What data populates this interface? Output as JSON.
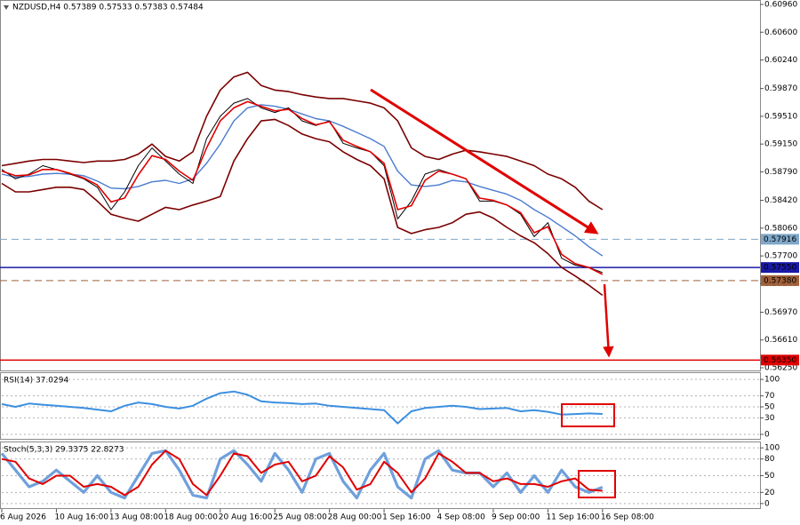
{
  "chart_data": [
    {
      "type": "line",
      "title": "NZDUSD,H4  0.57389 0.57533 0.57383 0.57484",
      "categories": [
        "6 Aug 2026",
        null,
        null,
        null,
        "10 Aug 16:00",
        null,
        null,
        null,
        "13 Aug 08:00",
        null,
        null,
        null,
        "18 Aug 00:00",
        null,
        null,
        null,
        "20 Aug 16:00",
        null,
        null,
        null,
        "25 Aug 08:00",
        null,
        null,
        null,
        "28 Aug 00:00",
        null,
        null,
        null,
        "1 Sep 16:00",
        null,
        null,
        null,
        "4 Sep 08:00",
        null,
        null,
        null,
        "9 Sep 00:00",
        null,
        null,
        null,
        "11 Sep 16:00",
        null,
        null,
        null,
        "16 Sep 08:00"
      ],
      "ylim": [
        0.56204,
        0.61006
      ],
      "yticks": [
        {
          "value": 0.6096,
          "label": "0.60960"
        },
        {
          "value": 0.606,
          "label": "0.60600"
        },
        {
          "value": 0.6024,
          "label": "0.60240"
        },
        {
          "value": 0.5987,
          "label": "0.59870"
        },
        {
          "value": 0.5951,
          "label": "0.59510"
        },
        {
          "value": 0.5915,
          "label": "0.59150"
        },
        {
          "value": 0.5879,
          "label": "0.58790"
        },
        {
          "value": 0.5842,
          "label": "0.58420"
        },
        {
          "value": 0.5806,
          "label": "0.58060"
        },
        {
          "value": 0.577,
          "label": "0.57700"
        },
        {
          "value": 0.5734,
          "label": "0.57340"
        },
        {
          "value": 0.5697,
          "label": "0.56970"
        },
        {
          "value": 0.5661,
          "label": "0.56610"
        },
        {
          "value": 0.5625,
          "label": "0.56250"
        }
      ],
      "grid": false,
      "series": [
        {
          "color": "#7b0000",
          "width": 1.6,
          "values": [
            0.5887,
            0.589,
            0.5893,
            0.5895,
            0.5895,
            0.5893,
            0.5891,
            0.5893,
            0.5893,
            0.5895,
            0.5902,
            0.5915,
            0.5899,
            0.5893,
            0.5905,
            0.5951,
            0.5985,
            0.6002,
            0.6008,
            0.5991,
            0.5985,
            0.5983,
            0.5979,
            0.5976,
            0.5974,
            0.5974,
            0.5971,
            0.5968,
            0.5962,
            0.5945,
            0.591,
            0.5899,
            0.5895,
            0.5902,
            0.5907,
            0.5905,
            0.5902,
            0.5899,
            0.5893,
            0.5887,
            0.5876,
            0.587,
            0.5859,
            0.5841,
            0.583
          ]
        },
        {
          "color": "#7b0000",
          "width": 1.6,
          "values": [
            0.5864,
            0.5853,
            0.5853,
            0.5856,
            0.5859,
            0.5859,
            0.5856,
            0.5841,
            0.5824,
            0.5819,
            0.5815,
            0.5824,
            0.5833,
            0.583,
            0.5836,
            0.5841,
            0.5847,
            0.5893,
            0.5922,
            0.5945,
            0.5947,
            0.5939,
            0.5928,
            0.5922,
            0.5918,
            0.5905,
            0.5895,
            0.5887,
            0.587,
            0.5807,
            0.5799,
            0.5804,
            0.5807,
            0.5813,
            0.5824,
            0.5827,
            0.5819,
            0.5807,
            0.5796,
            0.5787,
            0.5773,
            0.5755,
            0.5744,
            0.5732,
            0.5719
          ]
        },
        {
          "color": "#4a7cd0",
          "width": 1.4,
          "values": [
            0.5876,
            0.5872,
            0.5873,
            0.5876,
            0.5877,
            0.5876,
            0.5874,
            0.5867,
            0.5858,
            0.5857,
            0.586,
            0.5866,
            0.5868,
            0.5864,
            0.587,
            0.589,
            0.5915,
            0.5945,
            0.5962,
            0.5966,
            0.5964,
            0.596,
            0.5954,
            0.5948,
            0.5945,
            0.5938,
            0.593,
            0.5922,
            0.5912,
            0.588,
            0.5862,
            0.586,
            0.5862,
            0.5868,
            0.5866,
            0.586,
            0.5855,
            0.585,
            0.5842,
            0.583,
            0.582,
            0.5808,
            0.5796,
            0.5782,
            0.577
          ]
        },
        {
          "color": "#000000",
          "width": 1,
          "values": [
            0.5882,
            0.587,
            0.5876,
            0.5887,
            0.5882,
            0.5876,
            0.587,
            0.5859,
            0.583,
            0.5853,
            0.5887,
            0.591,
            0.5893,
            0.5876,
            0.5864,
            0.5922,
            0.5951,
            0.5968,
            0.5974,
            0.5962,
            0.5956,
            0.5962,
            0.5945,
            0.5939,
            0.5945,
            0.5916,
            0.591,
            0.5905,
            0.5887,
            0.5818,
            0.5841,
            0.5876,
            0.5882,
            0.5876,
            0.587,
            0.5841,
            0.5841,
            0.5836,
            0.5824,
            0.5795,
            0.5813,
            0.5767,
            0.5758,
            0.5755,
            0.57484
          ]
        },
        {
          "color": "#e00000",
          "width": 1.6,
          "values": [
            0.588,
            0.5874,
            0.5875,
            0.5882,
            0.5882,
            0.5877,
            0.5871,
            0.5862,
            0.584,
            0.5845,
            0.5875,
            0.59,
            0.5895,
            0.588,
            0.5868,
            0.591,
            0.5945,
            0.5962,
            0.597,
            0.5964,
            0.5958,
            0.596,
            0.5948,
            0.594,
            0.5944,
            0.592,
            0.5912,
            0.5905,
            0.589,
            0.583,
            0.5835,
            0.5868,
            0.588,
            0.5876,
            0.587,
            0.5845,
            0.5842,
            0.5836,
            0.5826,
            0.58,
            0.5808,
            0.5772,
            0.576,
            0.5755,
            0.5746
          ]
        }
      ],
      "levels": [
        {
          "value": 0.57916,
          "color": "#7fa7c9",
          "dash": true
        },
        {
          "value": 0.5755,
          "label": "0.57550",
          "color": "#1a1aa6",
          "dash": false
        },
        {
          "value": 0.5738,
          "label": "0.57380",
          "color": "#a0603a",
          "dash": true
        },
        {
          "value": 0.5635,
          "label": "0.56350",
          "color": "#e00000",
          "dash": false
        }
      ]
    },
    {
      "type": "line",
      "title": "RSI(14) 37.0294",
      "ylim": [
        -9.8,
        111.5
      ],
      "yticks": [
        0,
        30,
        50,
        70,
        100
      ],
      "grid": true,
      "series": [
        {
          "color": "#3c8fe0",
          "width": 2,
          "values": [
            55,
            50,
            56,
            54,
            52,
            50,
            48,
            45,
            42,
            52,
            58,
            55,
            50,
            47,
            52,
            65,
            75,
            78,
            72,
            60,
            58,
            57,
            55,
            56,
            52,
            50,
            48,
            46,
            44,
            20,
            42,
            48,
            50,
            52,
            50,
            46,
            47,
            48,
            42,
            44,
            41,
            36,
            37,
            38,
            37.0294
          ]
        }
      ]
    },
    {
      "type": "line",
      "title": "Stoch(5,3,3) 29.3375 22.8273",
      "ylim": [
        -9.8,
        109.8
      ],
      "yticks": [
        0,
        20,
        50,
        80,
        100
      ],
      "grid": true,
      "series": [
        {
          "color": "#6fa0dc",
          "width": 3.2,
          "values": [
            90,
            60,
            30,
            40,
            60,
            40,
            20,
            50,
            20,
            10,
            50,
            90,
            95,
            60,
            15,
            10,
            80,
            95,
            70,
            40,
            90,
            60,
            20,
            80,
            90,
            40,
            10,
            60,
            90,
            30,
            10,
            80,
            95,
            60,
            55,
            55,
            30,
            55,
            20,
            50,
            20,
            60,
            30,
            20,
            29.3375
          ]
        },
        {
          "color": "#e00000",
          "width": 2,
          "values": [
            80,
            75,
            45,
            35,
            50,
            50,
            30,
            35,
            30,
            15,
            30,
            70,
            95,
            80,
            35,
            15,
            50,
            90,
            85,
            55,
            70,
            75,
            40,
            50,
            85,
            65,
            25,
            35,
            75,
            55,
            20,
            45,
            90,
            75,
            55,
            55,
            40,
            45,
            35,
            35,
            30,
            40,
            45,
            25,
            22.8273
          ]
        }
      ]
    }
  ]
}
